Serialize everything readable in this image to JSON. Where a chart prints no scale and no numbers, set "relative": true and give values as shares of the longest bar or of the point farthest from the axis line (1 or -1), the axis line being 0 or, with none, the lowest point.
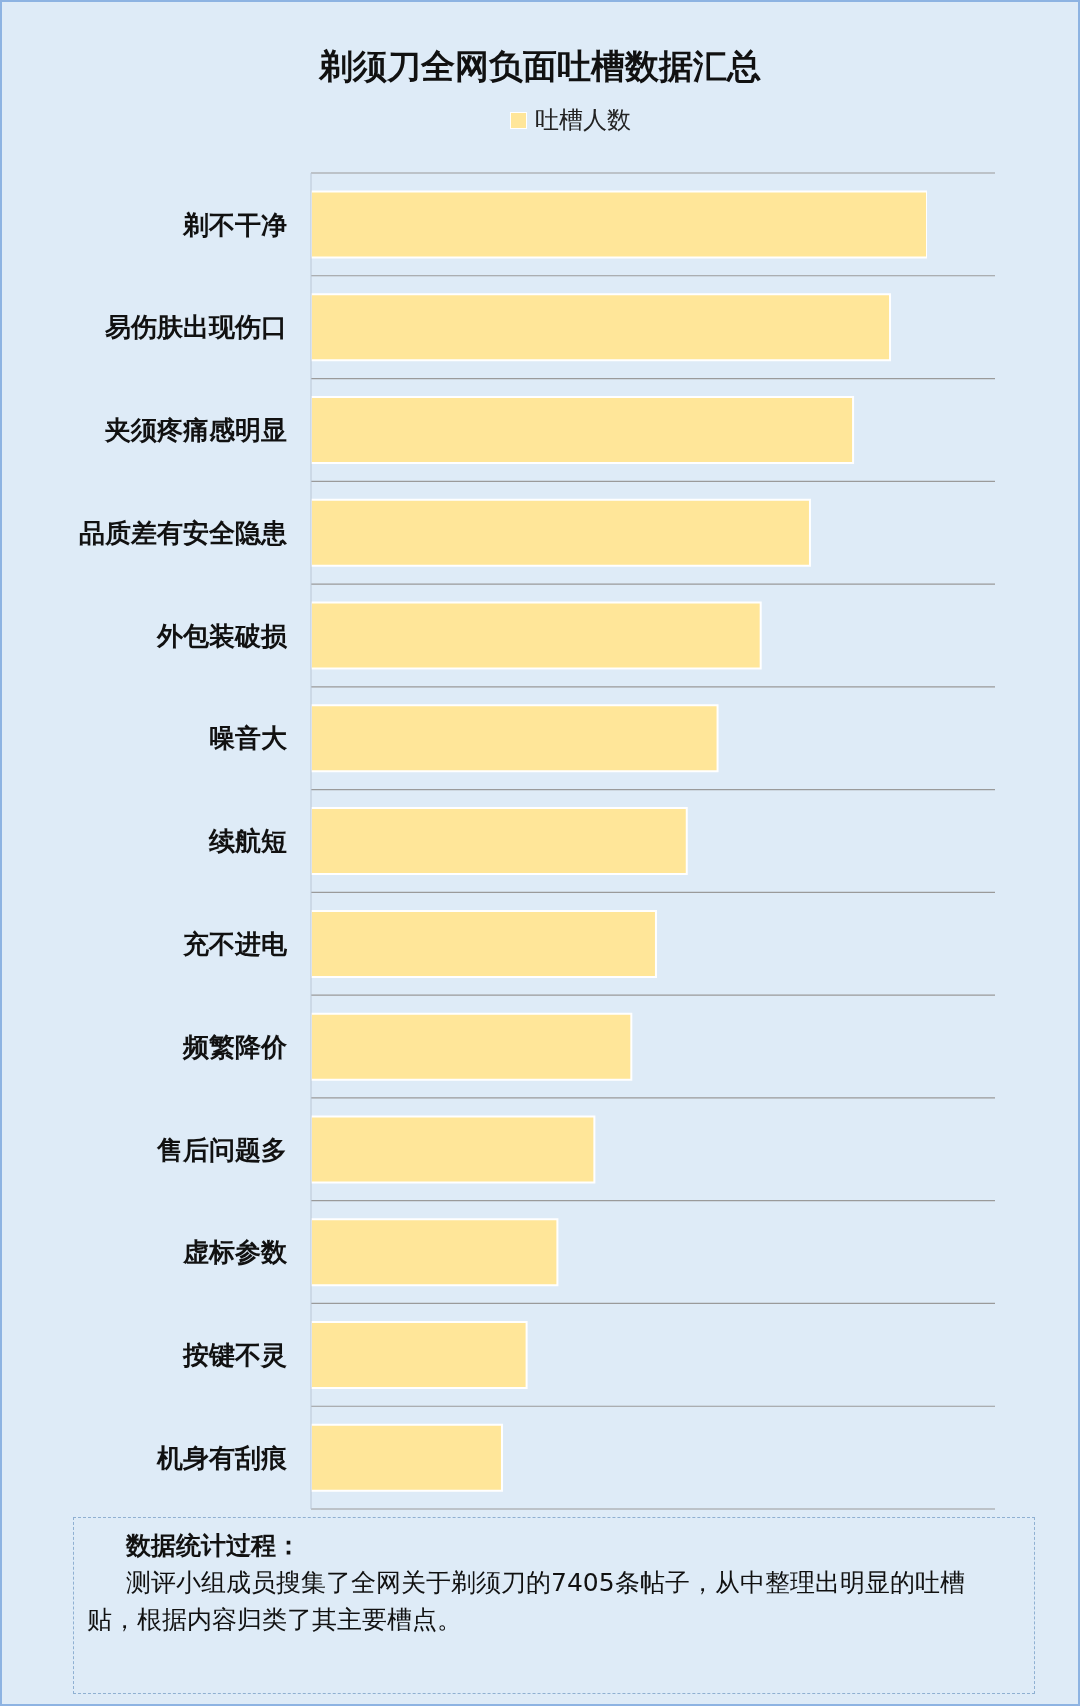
{
  "chart_data": {
    "type": "bar",
    "orientation": "horizontal",
    "relative": true,
    "title": "剃须刀全网负面吐槽数据汇总",
    "categories": [
      "剃不干净",
      "易伤肤出现伤口",
      "夹须疼痛感明显",
      "品质差有安全隐患",
      "外包装破损",
      "噪音大",
      "续航短",
      "充不进电",
      "频繁降价",
      "售后问题多",
      "虚标参数",
      "按键不灵",
      "机身有刮痕"
    ],
    "series": [
      {
        "name": "吐槽人数",
        "color": "#ffe699",
        "values": [
          1,
          0.94,
          0.88,
          0.81,
          0.73,
          0.66,
          0.61,
          0.56,
          0.52,
          0.46,
          0.4,
          0.35,
          0.31
        ]
      }
    ],
    "legend": "top",
    "grid": "y",
    "annotations": [
      "数据统计过程：",
      "测评小组成员搜集了全网关于剃须刀的7405条帖子，从中整理出明显的吐槽贴，根据内容归类了其主要槽点。"
    ]
  }
}
